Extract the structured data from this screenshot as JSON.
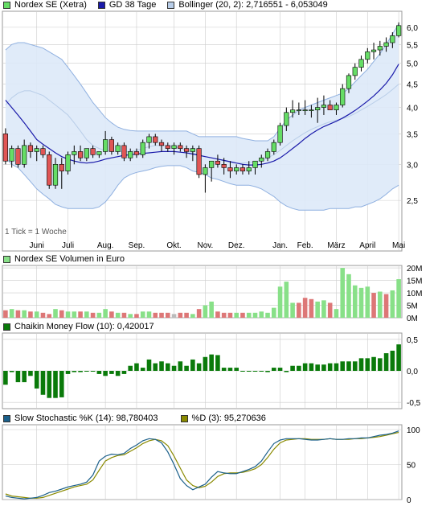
{
  "colors": {
    "up": "#66dd66",
    "down": "#e05555",
    "wick": "#000000",
    "sma": "#1a1aaa",
    "band_fill": "#dde9f8",
    "band_line": "#8fb0e0",
    "band_mid": "#b8cde8",
    "vol_up": "#88e088",
    "vol_down": "#dd7777",
    "vol_neutral": "#bbbbbb",
    "cmf": "#0a7a0a",
    "stoch_k": "#1a5f8a",
    "stoch_d": "#8a8a00",
    "grid": "#cccccc"
  },
  "chart_data": [
    {
      "type": "candlestick",
      "panel": "price",
      "legend": [
        {
          "label": "Nordex SE (Xetra)",
          "icon": "candle-swatch",
          "color": "#66dd66"
        },
        {
          "label": "GD 38 Tage",
          "icon": "line-swatch",
          "color": "#1a1aaa"
        },
        {
          "label": "Bollinger (20, 2): 2,716551 - 6,053049",
          "icon": "band-swatch",
          "color": "#b8cde8"
        }
      ],
      "note": "1 Tick = 1 Woche",
      "yscale": "log",
      "ylim": [
        2.1,
        6.4
      ],
      "yticks": [
        {
          "v": 2.5,
          "label": "2,5"
        },
        {
          "v": 3.0,
          "label": "3,0"
        },
        {
          "v": 3.5,
          "label": "3,5"
        },
        {
          "v": 4.0,
          "label": "4,0"
        },
        {
          "v": 4.5,
          "label": "4,5"
        },
        {
          "v": 5.0,
          "label": "5,0"
        },
        {
          "v": 5.5,
          "label": "5,5"
        },
        {
          "v": 6.0,
          "label": "6,0"
        }
      ],
      "xticks": [
        {
          "i": 5,
          "label": "Juni"
        },
        {
          "i": 10,
          "label": "Juli"
        },
        {
          "i": 16,
          "label": "Aug."
        },
        {
          "i": 21,
          "label": "Sep."
        },
        {
          "i": 27,
          "label": "Okt."
        },
        {
          "i": 32,
          "label": "Nov."
        },
        {
          "i": 37,
          "label": "Dez."
        },
        {
          "i": 44,
          "label": "Jan."
        },
        {
          "i": 48,
          "label": "Feb."
        },
        {
          "i": 53,
          "label": "März"
        },
        {
          "i": 58,
          "label": "April"
        },
        {
          "i": 63,
          "label": "Mai"
        }
      ],
      "ohlc": [
        [
          3.5,
          3.6,
          3.0,
          3.05
        ],
        [
          3.05,
          3.3,
          2.95,
          3.25
        ],
        [
          3.25,
          3.3,
          2.95,
          3.0
        ],
        [
          3.0,
          3.4,
          2.95,
          3.3
        ],
        [
          3.3,
          3.35,
          3.1,
          3.2
        ],
        [
          3.2,
          3.3,
          3.05,
          3.25
        ],
        [
          3.25,
          3.3,
          3.1,
          3.15
        ],
        [
          3.15,
          3.2,
          2.65,
          2.7
        ],
        [
          2.7,
          3.1,
          2.65,
          3.0
        ],
        [
          3.0,
          3.1,
          2.65,
          2.9
        ],
        [
          2.9,
          3.2,
          2.85,
          3.15
        ],
        [
          3.15,
          3.3,
          3.0,
          3.2
        ],
        [
          3.2,
          3.3,
          3.05,
          3.1
        ],
        [
          3.1,
          3.25,
          3.05,
          3.25
        ],
        [
          3.25,
          3.3,
          3.1,
          3.15
        ],
        [
          3.15,
          3.2,
          3.1,
          3.2
        ],
        [
          3.2,
          3.55,
          3.15,
          3.4
        ],
        [
          3.4,
          3.45,
          3.15,
          3.2
        ],
        [
          3.2,
          3.35,
          3.15,
          3.3
        ],
        [
          3.3,
          3.35,
          3.05,
          3.1
        ],
        [
          3.1,
          3.25,
          3.05,
          3.2
        ],
        [
          3.2,
          3.25,
          3.1,
          3.15
        ],
        [
          3.15,
          3.4,
          3.1,
          3.35
        ],
        [
          3.35,
          3.5,
          3.25,
          3.45
        ],
        [
          3.45,
          3.5,
          3.3,
          3.35
        ],
        [
          3.35,
          3.4,
          3.2,
          3.3
        ],
        [
          3.3,
          3.35,
          3.2,
          3.25
        ],
        [
          3.25,
          3.35,
          3.15,
          3.3
        ],
        [
          3.3,
          3.35,
          3.2,
          3.25
        ],
        [
          3.25,
          3.3,
          3.1,
          3.2
        ],
        [
          3.2,
          3.3,
          3.05,
          3.25
        ],
        [
          3.25,
          3.3,
          2.8,
          2.85
        ],
        [
          2.85,
          3.0,
          2.6,
          2.95
        ],
        [
          2.95,
          3.05,
          2.75,
          3.05
        ],
        [
          3.05,
          3.15,
          2.95,
          3.0
        ],
        [
          3.0,
          3.1,
          2.85,
          2.95
        ],
        [
          2.95,
          3.05,
          2.8,
          2.9
        ],
        [
          2.9,
          3.0,
          2.85,
          2.95
        ],
        [
          2.95,
          3.0,
          2.85,
          2.9
        ],
        [
          2.9,
          3.05,
          2.85,
          2.95
        ],
        [
          2.95,
          3.05,
          2.85,
          3.05
        ],
        [
          3.05,
          3.15,
          2.95,
          3.1
        ],
        [
          3.1,
          3.25,
          3.05,
          3.2
        ],
        [
          3.2,
          3.4,
          3.15,
          3.35
        ],
        [
          3.35,
          3.7,
          3.3,
          3.65
        ],
        [
          3.65,
          4.0,
          3.55,
          3.9
        ],
        [
          3.9,
          4.15,
          3.8,
          3.95
        ],
        [
          3.95,
          4.1,
          3.85,
          3.95
        ],
        [
          3.95,
          4.15,
          3.85,
          3.95
        ],
        [
          3.95,
          4.05,
          3.8,
          3.95
        ],
        [
          3.95,
          4.2,
          3.7,
          4.0
        ],
        [
          4.0,
          4.25,
          3.85,
          4.05
        ],
        [
          4.05,
          4.15,
          3.95,
          3.95
        ],
        [
          3.95,
          4.1,
          3.85,
          4.05
        ],
        [
          4.05,
          4.5,
          4.0,
          4.4
        ],
        [
          4.4,
          4.75,
          4.3,
          4.7
        ],
        [
          4.7,
          5.0,
          4.6,
          4.9
        ],
        [
          4.9,
          5.2,
          4.8,
          5.1
        ],
        [
          5.1,
          5.4,
          5.0,
          5.3
        ],
        [
          5.3,
          5.55,
          5.1,
          5.35
        ],
        [
          5.35,
          5.6,
          5.2,
          5.45
        ],
        [
          5.45,
          5.7,
          5.3,
          5.55
        ],
        [
          5.55,
          5.85,
          5.4,
          5.75
        ],
        [
          5.75,
          6.15,
          5.7,
          6.05
        ]
      ],
      "sma38": [
        4.15,
        4.0,
        3.85,
        3.7,
        3.55,
        3.4,
        3.32,
        3.25,
        3.18,
        3.12,
        3.08,
        3.05,
        3.03,
        3.02,
        3.03,
        3.05,
        3.08,
        3.1,
        3.12,
        3.14,
        3.15,
        3.16,
        3.17,
        3.18,
        3.19,
        3.2,
        3.2,
        3.2,
        3.19,
        3.18,
        3.16,
        3.14,
        3.12,
        3.1,
        3.08,
        3.06,
        3.04,
        3.02,
        3.0,
        2.99,
        2.99,
        3.0,
        3.02,
        3.05,
        3.1,
        3.17,
        3.25,
        3.33,
        3.42,
        3.5,
        3.57,
        3.63,
        3.68,
        3.73,
        3.79,
        3.86,
        3.94,
        4.03,
        4.13,
        4.24,
        4.37,
        4.52,
        4.72,
        4.98
      ],
      "bb_upper": [
        5.35,
        5.5,
        5.55,
        5.55,
        5.5,
        5.45,
        5.4,
        5.3,
        5.2,
        5.1,
        4.9,
        4.7,
        4.5,
        4.3,
        4.1,
        3.95,
        3.8,
        3.7,
        3.62,
        3.58,
        3.56,
        3.55,
        3.55,
        3.55,
        3.55,
        3.55,
        3.55,
        3.55,
        3.55,
        3.55,
        3.5,
        3.45,
        3.45,
        3.45,
        3.45,
        3.45,
        3.45,
        3.45,
        3.42,
        3.4,
        3.38,
        3.38,
        3.38,
        3.45,
        3.6,
        3.75,
        3.85,
        3.95,
        4.0,
        4.05,
        4.1,
        4.15,
        4.2,
        4.25,
        4.3,
        4.4,
        4.55,
        4.7,
        4.85,
        5.05,
        5.25,
        5.5,
        5.8,
        6.1
      ],
      "bb_mid": [
        4.05,
        4.2,
        4.3,
        4.35,
        4.35,
        4.3,
        4.25,
        4.15,
        4.05,
        3.95,
        3.85,
        3.7,
        3.55,
        3.4,
        3.3,
        3.25,
        3.22,
        3.2,
        3.2,
        3.2,
        3.2,
        3.22,
        3.25,
        3.28,
        3.3,
        3.3,
        3.3,
        3.28,
        3.25,
        3.22,
        3.18,
        3.15,
        3.12,
        3.1,
        3.08,
        3.05,
        3.03,
        3.02,
        3.02,
        3.03,
        3.04,
        3.06,
        3.1,
        3.15,
        3.22,
        3.3,
        3.38,
        3.45,
        3.52,
        3.58,
        3.63,
        3.68,
        3.72,
        3.75,
        3.78,
        3.82,
        3.88,
        3.95,
        4.02,
        4.1,
        4.18,
        4.27,
        4.38,
        4.5
      ],
      "bb_lower": [
        3.1,
        3.0,
        2.95,
        2.85,
        2.75,
        2.65,
        2.58,
        2.52,
        2.45,
        2.42,
        2.4,
        2.4,
        2.4,
        2.4,
        2.4,
        2.42,
        2.48,
        2.58,
        2.7,
        2.8,
        2.85,
        2.88,
        2.9,
        2.92,
        2.95,
        2.97,
        2.98,
        2.98,
        2.98,
        2.95,
        2.9,
        2.88,
        2.85,
        2.8,
        2.78,
        2.75,
        2.72,
        2.7,
        2.7,
        2.7,
        2.68,
        2.65,
        2.6,
        2.55,
        2.48,
        2.43,
        2.4,
        2.38,
        2.38,
        2.38,
        2.38,
        2.38,
        2.4,
        2.4,
        2.4,
        2.4,
        2.42,
        2.42,
        2.45,
        2.48,
        2.52,
        2.58,
        2.65,
        2.7
      ]
    },
    {
      "type": "bar",
      "panel": "volume",
      "legend": {
        "label": "Nordex SE Volumen in Euro",
        "color": "#88e088"
      },
      "yticks": [
        {
          "v": 0,
          "label": "0M"
        },
        {
          "v": 5,
          "label": "5M"
        },
        {
          "v": 10,
          "label": "10M"
        },
        {
          "v": 15,
          "label": "15M"
        },
        {
          "v": 20,
          "label": "20M"
        }
      ],
      "ylim": [
        0,
        21
      ],
      "unit": "Mio. EUR",
      "values": [
        3,
        3.5,
        3,
        3,
        2.5,
        2.5,
        2,
        1.5,
        3.5,
        3,
        2.5,
        2.5,
        2.5,
        2.5,
        2,
        2,
        3.5,
        2.5,
        2,
        2,
        1.5,
        1.5,
        2.5,
        2.5,
        2,
        2,
        2,
        1.5,
        2,
        2,
        1.5,
        3.5,
        5,
        6.5,
        2.5,
        2,
        2,
        2,
        2,
        2,
        2,
        2.5,
        2,
        4,
        12.5,
        14.5,
        6,
        6,
        8,
        7.5,
        6.5,
        7,
        6,
        3.5,
        20,
        17.5,
        13,
        12,
        12.5,
        10,
        10.5,
        9.5,
        11,
        15.5
      ],
      "up": [
        0,
        1,
        0,
        1,
        0,
        1,
        0,
        0,
        1,
        0,
        1,
        1,
        0,
        1,
        0,
        1,
        1,
        0,
        1,
        0,
        1,
        0,
        1,
        1,
        0,
        0,
        0,
        2,
        0,
        0,
        1,
        0,
        1,
        1,
        0,
        0,
        0,
        1,
        0,
        1,
        1,
        1,
        1,
        1,
        1,
        1,
        1,
        0,
        0,
        0,
        1,
        1,
        0,
        1,
        1,
        1,
        1,
        1,
        1,
        0,
        1,
        0,
        1,
        1
      ]
    },
    {
      "type": "bar",
      "panel": "cmf",
      "legend": {
        "label": "Chaikin Money Flow (10): 0,420017",
        "color": "#0a7a0a"
      },
      "yticks": [
        {
          "v": -0.5,
          "label": "-0,5"
        },
        {
          "v": 0.0,
          "label": "0,0"
        },
        {
          "v": 0.5,
          "label": "0,5"
        }
      ],
      "ylim": [
        -0.6,
        0.6
      ],
      "values": [
        -0.22,
        -0.02,
        -0.18,
        -0.18,
        -0.08,
        -0.28,
        -0.38,
        -0.43,
        -0.43,
        -0.42,
        -0.05,
        -0.02,
        -0.02,
        0.0,
        0.0,
        -0.05,
        -0.08,
        -0.05,
        -0.08,
        -0.05,
        0.08,
        0.12,
        0.05,
        0.18,
        0.12,
        0.15,
        0.12,
        0.08,
        0.15,
        0.08,
        0.18,
        0.12,
        0.22,
        0.26,
        0.25,
        0.05,
        0.05,
        0.05,
        0.0,
        0.0,
        0.0,
        0.0,
        -0.02,
        0.05,
        0.05,
        -0.02,
        0.08,
        0.08,
        0.12,
        0.12,
        0.1,
        0.1,
        0.12,
        0.12,
        0.15,
        0.15,
        0.15,
        0.2,
        0.2,
        0.22,
        0.2,
        0.28,
        0.32,
        0.42
      ]
    },
    {
      "type": "line",
      "panel": "stochastic",
      "legend": [
        {
          "label": "Slow Stochastic %K (14): 98,780403",
          "color": "#1a5f8a"
        },
        {
          "label": "%D (3): 95,270636",
          "color": "#8a8a00"
        }
      ],
      "yticks": [
        {
          "v": 0,
          "label": "0"
        },
        {
          "v": 50,
          "label": "50"
        },
        {
          "v": 100,
          "label": "100"
        }
      ],
      "ylim": [
        0,
        100
      ],
      "k": [
        5,
        3,
        2,
        1,
        2,
        3,
        6,
        10,
        12,
        15,
        18,
        20,
        22,
        25,
        35,
        55,
        62,
        65,
        64,
        66,
        73,
        78,
        84,
        87,
        86,
        81,
        68,
        50,
        30,
        20,
        14,
        18,
        22,
        32,
        40,
        38,
        37,
        37,
        40,
        43,
        47,
        55,
        68,
        80,
        85,
        87,
        87,
        87,
        86,
        85,
        85,
        86,
        87,
        86,
        86,
        87,
        87,
        88,
        88,
        90,
        92,
        93,
        95,
        98
      ],
      "d": [
        8,
        5,
        4,
        3,
        2,
        2,
        3,
        6,
        9,
        12,
        15,
        18,
        20,
        22,
        28,
        42,
        55,
        60,
        63,
        64,
        69,
        74,
        80,
        84,
        86,
        84,
        77,
        62,
        45,
        28,
        20,
        17,
        19,
        25,
        33,
        37,
        38,
        38,
        39,
        41,
        44,
        50,
        60,
        72,
        81,
        85,
        86,
        87,
        87,
        86,
        86,
        86,
        87,
        86,
        86,
        86,
        87,
        87,
        88,
        89,
        90,
        92,
        94,
        96
      ]
    }
  ]
}
